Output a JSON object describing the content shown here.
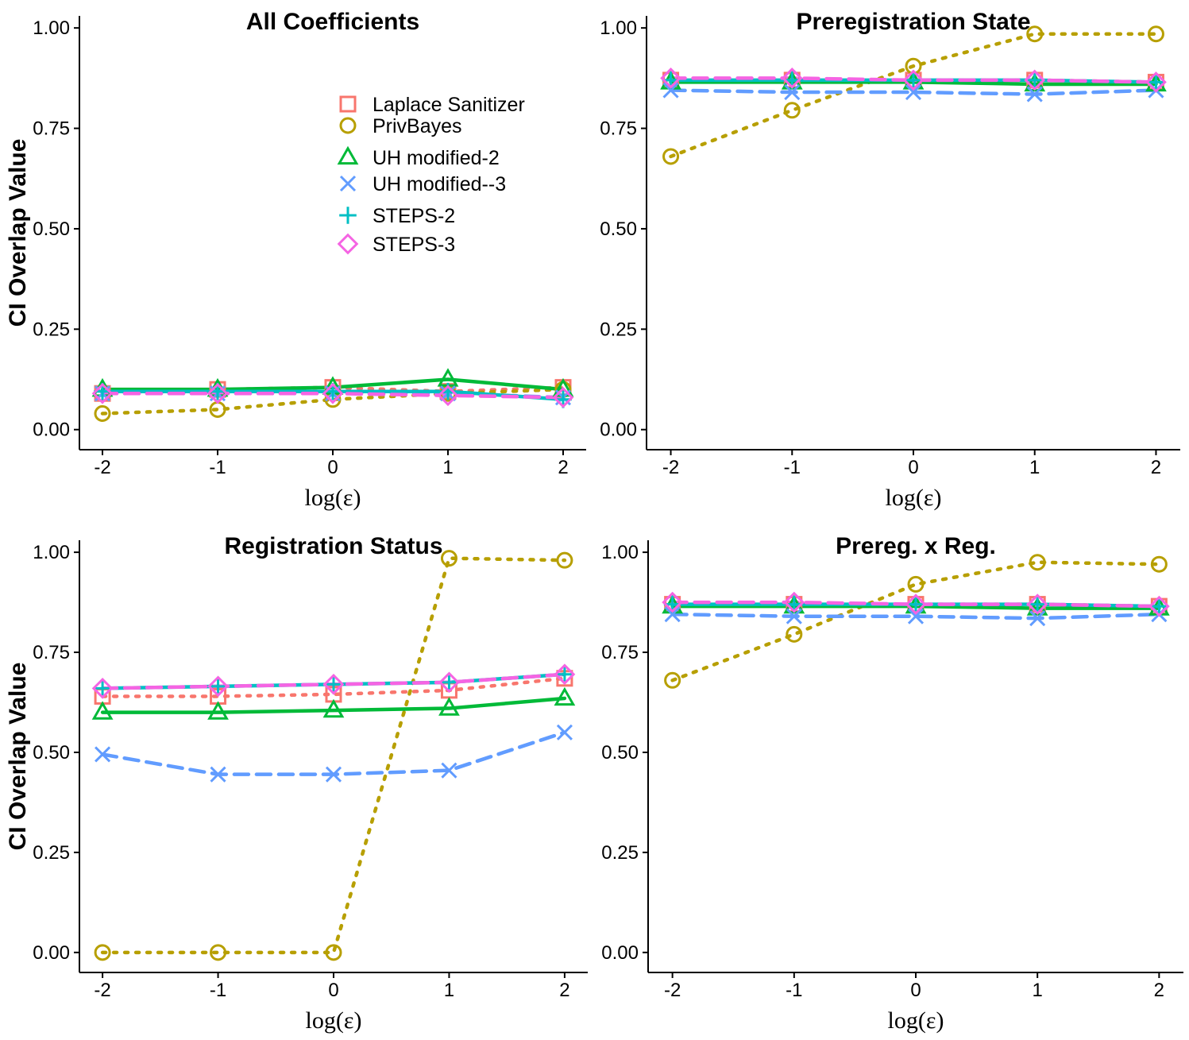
{
  "chart_data": [
    {
      "type": "line",
      "title": "All Coefficients",
      "xlabel": "log(ε)",
      "ylabel": "CI Overlap Value",
      "x": [
        -2,
        -1,
        0,
        1,
        2
      ],
      "x_tick_labels": [
        "-2",
        "-1",
        "0",
        "1",
        "2"
      ],
      "y_ticks": [
        0,
        0.25,
        0.5,
        0.75,
        1
      ],
      "y_tick_labels": [
        "0.00",
        "0.25",
        "0.50",
        "0.75",
        "1.00"
      ],
      "xlim": [
        -2.2,
        2.2
      ],
      "ylim": [
        -0.05,
        1.03
      ],
      "grid": false,
      "show_legend": true,
      "series": [
        {
          "key": "laplace",
          "values": [
            0.09,
            0.1,
            0.105,
            0.095,
            0.105
          ]
        },
        {
          "key": "privbayes",
          "values": [
            0.04,
            0.05,
            0.075,
            0.09,
            0.1
          ]
        },
        {
          "key": "uh2",
          "values": [
            0.1,
            0.1,
            0.105,
            0.125,
            0.1
          ]
        },
        {
          "key": "uh3",
          "values": [
            0.09,
            0.09,
            0.09,
            0.09,
            0.08
          ]
        },
        {
          "key": "steps2",
          "values": [
            0.095,
            0.095,
            0.095,
            0.095,
            0.075
          ]
        },
        {
          "key": "steps3",
          "values": [
            0.09,
            0.09,
            0.09,
            0.085,
            0.08
          ]
        }
      ]
    },
    {
      "type": "line",
      "title": "Preregistration State",
      "xlabel": "log(ε)",
      "ylabel": "",
      "x": [
        -2,
        -1,
        0,
        1,
        2
      ],
      "x_tick_labels": [
        "-2",
        "-1",
        "0",
        "1",
        "2"
      ],
      "y_ticks": [
        0,
        0.25,
        0.5,
        0.75,
        1
      ],
      "y_tick_labels": [
        "0.00",
        "0.25",
        "0.50",
        "0.75",
        "1.00"
      ],
      "xlim": [
        -2.2,
        2.2
      ],
      "ylim": [
        -0.05,
        1.03
      ],
      "grid": false,
      "show_legend": false,
      "series": [
        {
          "key": "laplace",
          "values": [
            0.87,
            0.87,
            0.87,
            0.87,
            0.865
          ]
        },
        {
          "key": "privbayes",
          "values": [
            0.68,
            0.795,
            0.905,
            0.985,
            0.985
          ]
        },
        {
          "key": "uh2",
          "values": [
            0.865,
            0.865,
            0.865,
            0.86,
            0.86
          ]
        },
        {
          "key": "uh3",
          "values": [
            0.845,
            0.84,
            0.84,
            0.835,
            0.845
          ]
        },
        {
          "key": "steps2",
          "values": [
            0.87,
            0.87,
            0.87,
            0.87,
            0.865
          ]
        },
        {
          "key": "steps3",
          "values": [
            0.875,
            0.875,
            0.87,
            0.87,
            0.865
          ]
        }
      ]
    },
    {
      "type": "line",
      "title": "Registration Status",
      "xlabel": "log(ε)",
      "ylabel": "CI Overlap Value",
      "x": [
        -2,
        -1,
        0,
        1,
        2
      ],
      "x_tick_labels": [
        "-2",
        "-1",
        "0",
        "1",
        "2"
      ],
      "y_ticks": [
        0,
        0.25,
        0.5,
        0.75,
        1
      ],
      "y_tick_labels": [
        "0.00",
        "0.25",
        "0.50",
        "0.75",
        "1.00"
      ],
      "xlim": [
        -2.2,
        2.2
      ],
      "ylim": [
        -0.05,
        1.03
      ],
      "grid": false,
      "show_legend": false,
      "series": [
        {
          "key": "laplace",
          "values": [
            0.64,
            0.64,
            0.645,
            0.655,
            0.685
          ]
        },
        {
          "key": "privbayes",
          "values": [
            0.0,
            0.0,
            0.0,
            0.985,
            0.98
          ]
        },
        {
          "key": "uh2",
          "values": [
            0.6,
            0.6,
            0.605,
            0.61,
            0.635
          ]
        },
        {
          "key": "uh3",
          "values": [
            0.495,
            0.445,
            0.445,
            0.455,
            0.55
          ]
        },
        {
          "key": "steps2",
          "values": [
            0.66,
            0.665,
            0.67,
            0.675,
            0.695
          ]
        },
        {
          "key": "steps3",
          "values": [
            0.66,
            0.665,
            0.67,
            0.675,
            0.695
          ]
        }
      ]
    },
    {
      "type": "line",
      "title": "Prereg. x Reg.",
      "xlabel": "log(ε)",
      "ylabel": "",
      "x": [
        -2,
        -1,
        0,
        1,
        2
      ],
      "x_tick_labels": [
        "-2",
        "-1",
        "0",
        "1",
        "2"
      ],
      "y_ticks": [
        0,
        0.25,
        0.5,
        0.75,
        1
      ],
      "y_tick_labels": [
        "0.00",
        "0.25",
        "0.50",
        "0.75",
        "1.00"
      ],
      "xlim": [
        -2.2,
        2.2
      ],
      "ylim": [
        -0.05,
        1.03
      ],
      "grid": false,
      "show_legend": false,
      "series": [
        {
          "key": "laplace",
          "values": [
            0.87,
            0.87,
            0.87,
            0.87,
            0.865
          ]
        },
        {
          "key": "privbayes",
          "values": [
            0.68,
            0.795,
            0.92,
            0.975,
            0.97
          ]
        },
        {
          "key": "uh2",
          "values": [
            0.865,
            0.865,
            0.865,
            0.86,
            0.86
          ]
        },
        {
          "key": "uh3",
          "values": [
            0.845,
            0.84,
            0.84,
            0.835,
            0.845
          ]
        },
        {
          "key": "steps2",
          "values": [
            0.87,
            0.87,
            0.87,
            0.87,
            0.865
          ]
        },
        {
          "key": "steps3",
          "values": [
            0.875,
            0.875,
            0.87,
            0.87,
            0.865
          ]
        }
      ]
    }
  ],
  "legend": [
    {
      "key": "laplace",
      "name": "Laplace Sanitizer",
      "color": "#F8766D",
      "marker": "square",
      "dash": "dotted"
    },
    {
      "key": "privbayes",
      "name": "PrivBayes",
      "color": "#B79F00",
      "marker": "circle",
      "dash": "dotted"
    },
    {
      "key": "uh2",
      "name": "UH modified-2",
      "color": "#00BA38",
      "marker": "triangle",
      "dash": "solid"
    },
    {
      "key": "uh3",
      "name": "UH modified--3",
      "color": "#619CFF",
      "marker": "x",
      "dash": "dashed"
    },
    {
      "key": "steps2",
      "name": "STEPS-2",
      "color": "#00BFC4",
      "marker": "plus",
      "dash": "solid"
    },
    {
      "key": "steps3",
      "name": "STEPS-3",
      "color": "#F564E3",
      "marker": "diamond",
      "dash": "dashed"
    }
  ]
}
